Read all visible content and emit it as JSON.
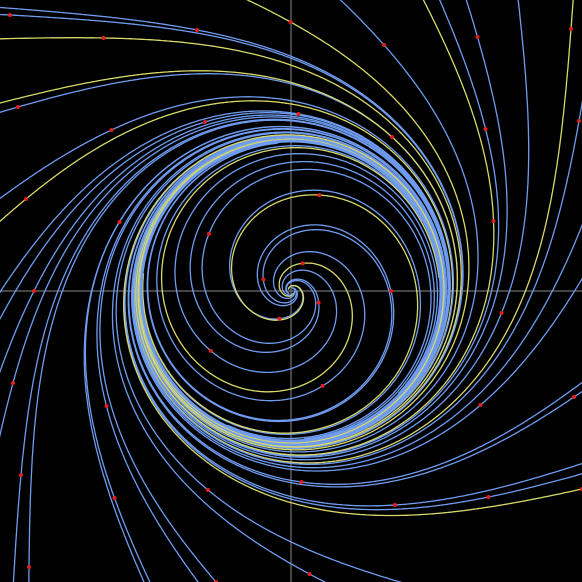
{
  "background": "#000000",
  "axis_color": "#8a8a8a",
  "line_color": "#6f9cf0",
  "highlight_color": "#d9d96a",
  "point_color": "#e02020"
}
